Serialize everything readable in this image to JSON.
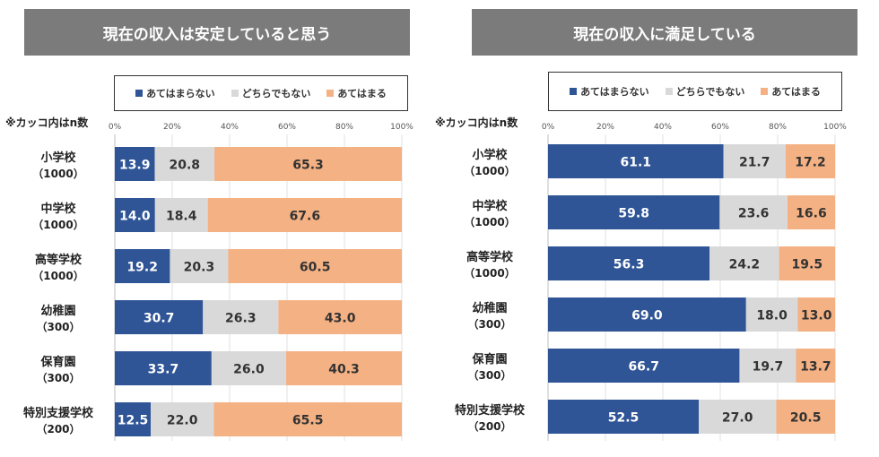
{
  "legend": [
    {
      "label": "あてはまらない",
      "color": "#2f5597"
    },
    {
      "label": "どちらでもない",
      "color": "#d9d9d9"
    },
    {
      "label": "あてはまる",
      "color": "#f4b183"
    }
  ],
  "note": "※カッコ内はn数",
  "chart_data": [
    {
      "type": "bar",
      "stacked": true,
      "orientation": "horizontal",
      "title": "現在の収入は安定していると思う",
      "x_ticks": [
        "0%",
        "20%",
        "40%",
        "60%",
        "80%",
        "100%"
      ],
      "xlim": [
        0,
        100
      ],
      "categories": [
        "小学校",
        "中学校",
        "高等学校",
        "幼稚園",
        "保育園",
        "特別支援学校"
      ],
      "n_labels": [
        "（1000）",
        "（1000）",
        "（1000）",
        "（300）",
        "（300）",
        "（200）"
      ],
      "series": [
        {
          "name": "あてはまらない",
          "values": [
            13.9,
            14.0,
            19.2,
            30.7,
            33.7,
            12.5
          ],
          "labels": [
            "13.9",
            "14.0",
            "19.2",
            "30.7",
            "33.7",
            "12.5"
          ]
        },
        {
          "name": "どちらでもない",
          "values": [
            20.8,
            18.4,
            20.3,
            26.3,
            26.0,
            22.0
          ],
          "labels": [
            "20.8",
            "18.4",
            "20.3",
            "26.3",
            "26.0",
            "22.0"
          ]
        },
        {
          "name": "あてはまる",
          "values": [
            65.3,
            67.6,
            60.5,
            43.0,
            40.3,
            65.5
          ],
          "labels": [
            "65.3",
            "67.6",
            "60.5",
            "43.0",
            "40.3",
            "65.5"
          ]
        }
      ]
    },
    {
      "type": "bar",
      "stacked": true,
      "orientation": "horizontal",
      "title": "現在の収入に満足している",
      "x_ticks": [
        "0%",
        "20%",
        "40%",
        "60%",
        "80%",
        "100%"
      ],
      "xlim": [
        0,
        100
      ],
      "categories": [
        "小学校",
        "中学校",
        "高等学校",
        "幼稚園",
        "保育園",
        "特別支援学校"
      ],
      "n_labels": [
        "（1000）",
        "（1000）",
        "（1000）",
        "（300）",
        "（300）",
        "（200）"
      ],
      "series": [
        {
          "name": "あてはまらない",
          "values": [
            61.1,
            59.8,
            56.3,
            69.0,
            66.7,
            52.5
          ],
          "labels": [
            "61.1",
            "59.8",
            "56.3",
            "69.0",
            "66.7",
            "52.5"
          ]
        },
        {
          "name": "どちらでもない",
          "values": [
            21.7,
            23.6,
            24.2,
            18.0,
            19.7,
            27.0
          ],
          "labels": [
            "21.7",
            "23.6",
            "24.2",
            "18.0",
            "19.7",
            "27.0"
          ]
        },
        {
          "name": "あてはまる",
          "values": [
            17.2,
            16.6,
            19.5,
            13.0,
            13.7,
            20.5
          ],
          "labels": [
            "17.2",
            "16.6",
            "19.5",
            "13.0",
            "13.7",
            "20.5"
          ]
        }
      ]
    }
  ]
}
